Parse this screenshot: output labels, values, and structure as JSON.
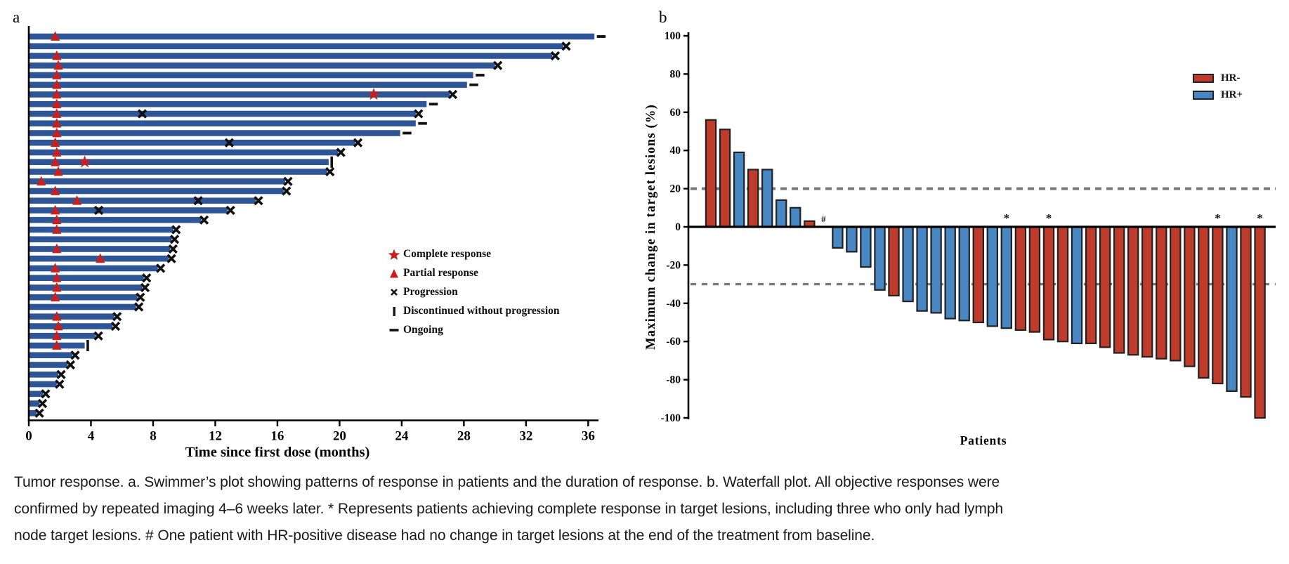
{
  "figure": {
    "panel_a_label": "a",
    "panel_b_label": "b"
  },
  "colors": {
    "swimmer_bar": "#2E5596",
    "response_red": "#C9201D",
    "marker_black": "#111111",
    "hr_neg": "#BF3B2B",
    "hr_pos": "#4787C3",
    "bar_outline": "#222222",
    "dashed_line": "#7A7A7A",
    "axis_black": "#000000"
  },
  "chart_data": [
    {
      "type": "bar",
      "variant": "swimmer",
      "xlabel": "Time since first dose (months)",
      "x_ticks": [
        0,
        4,
        8,
        12,
        16,
        20,
        24,
        28,
        32,
        36
      ],
      "xlim": [
        0,
        36.5
      ],
      "legend": [
        {
          "symbol": "star",
          "label": "Complete response"
        },
        {
          "symbol": "triangle",
          "label": "Partial response"
        },
        {
          "symbol": "x",
          "label": "Progression"
        },
        {
          "symbol": "vbar",
          "label": "Discontinued without progression"
        },
        {
          "symbol": "dash",
          "label": "Ongoing"
        }
      ],
      "rows": [
        {
          "duration": 36.4,
          "end_marker": "ongoing",
          "partial_response_at": 1.7
        },
        {
          "duration": 34.4,
          "end_marker": "progression"
        },
        {
          "duration": 33.7,
          "end_marker": "progression",
          "partial_response_at": 1.8
        },
        {
          "duration": 30.0,
          "end_marker": "progression",
          "partial_response_at": 1.9
        },
        {
          "duration": 28.6,
          "end_marker": "ongoing",
          "partial_response_at": 1.8
        },
        {
          "duration": 28.2,
          "end_marker": "ongoing",
          "partial_response_at": 1.8
        },
        {
          "duration": 27.1,
          "end_marker": "progression",
          "partial_response_at": 1.8,
          "complete_response_at": 22.2
        },
        {
          "duration": 25.6,
          "end_marker": "ongoing",
          "partial_response_at": 1.8
        },
        {
          "duration": 24.9,
          "end_marker": "progression",
          "partial_response_at": 1.8,
          "progression_at": [
            7.3
          ]
        },
        {
          "duration": 24.9,
          "end_marker": "ongoing",
          "partial_response_at": 1.8
        },
        {
          "duration": 23.9,
          "end_marker": "ongoing",
          "partial_response_at": 1.8
        },
        {
          "duration": 21.0,
          "end_marker": "progression",
          "partial_response_at": 1.7,
          "progression_at": [
            12.9
          ]
        },
        {
          "duration": 19.9,
          "end_marker": "progression",
          "partial_response_at": 1.8
        },
        {
          "duration": 19.3,
          "end_marker": "discontinued",
          "partial_response_at": 1.7,
          "complete_response_at": 3.6
        },
        {
          "duration": 19.2,
          "end_marker": "progression",
          "partial_response_at": 1.9
        },
        {
          "duration": 16.5,
          "end_marker": "progression",
          "partial_response_at": 0.8
        },
        {
          "duration": 16.4,
          "end_marker": "progression",
          "partial_response_at": 1.7
        },
        {
          "duration": 14.6,
          "end_marker": "progression",
          "partial_response_at": 3.1,
          "progression_at": [
            10.9
          ]
        },
        {
          "duration": 12.8,
          "end_marker": "progression",
          "partial_response_at": 1.7,
          "progression_at": [
            4.5
          ]
        },
        {
          "duration": 11.1,
          "end_marker": "progression",
          "partial_response_at": 1.8
        },
        {
          "duration": 9.3,
          "end_marker": "progression",
          "partial_response_at": 1.8
        },
        {
          "duration": 9.2,
          "end_marker": "progression"
        },
        {
          "duration": 9.1,
          "end_marker": "progression",
          "partial_response_at": 1.8
        },
        {
          "duration": 9.0,
          "end_marker": "progression",
          "partial_response_at": 4.6
        },
        {
          "duration": 8.3,
          "end_marker": "progression",
          "partial_response_at": 1.7
        },
        {
          "duration": 7.4,
          "end_marker": "progression",
          "partial_response_at": 1.8
        },
        {
          "duration": 7.3,
          "end_marker": "progression",
          "partial_response_at": 1.8
        },
        {
          "duration": 7.0,
          "end_marker": "progression",
          "partial_response_at": 1.7
        },
        {
          "duration": 6.9,
          "end_marker": "progression"
        },
        {
          "duration": 5.5,
          "end_marker": "progression",
          "partial_response_at": 1.8
        },
        {
          "duration": 5.4,
          "end_marker": "progression",
          "partial_response_at": 1.9
        },
        {
          "duration": 4.3,
          "end_marker": "progression",
          "partial_response_at": 1.8
        },
        {
          "duration": 3.6,
          "end_marker": "discontinued",
          "partial_response_at": 1.8
        },
        {
          "duration": 2.8,
          "end_marker": "progression"
        },
        {
          "duration": 2.5,
          "end_marker": "progression"
        },
        {
          "duration": 1.9,
          "end_marker": "progression"
        },
        {
          "duration": 1.8,
          "end_marker": "progression"
        },
        {
          "duration": 0.9,
          "end_marker": "progression"
        },
        {
          "duration": 0.7,
          "end_marker": "progression"
        },
        {
          "duration": 0.5,
          "end_marker": "progression"
        }
      ]
    },
    {
      "type": "bar",
      "variant": "waterfall",
      "ylabel": "Maximum change in target lesions (%)",
      "xlabel": "Patients",
      "ylim": [
        -100,
        100
      ],
      "y_ticks": [
        100,
        80,
        60,
        40,
        20,
        0,
        -20,
        -40,
        -60,
        -80,
        -100
      ],
      "reference_lines": [
        20,
        -30
      ],
      "legend": [
        {
          "label": "HR-",
          "color_key": "hr_neg"
        },
        {
          "label": "HR+",
          "color_key": "hr_pos"
        }
      ],
      "bars": [
        {
          "value": 56,
          "group": "HR-"
        },
        {
          "value": 51,
          "group": "HR-"
        },
        {
          "value": 39,
          "group": "HR+"
        },
        {
          "value": 30,
          "group": "HR-"
        },
        {
          "value": 30,
          "group": "HR+"
        },
        {
          "value": 14,
          "group": "HR+"
        },
        {
          "value": 10,
          "group": "HR+"
        },
        {
          "value": 3,
          "group": "HR-"
        },
        {
          "value": 0,
          "group": "HR+",
          "annotation": "#"
        },
        {
          "value": -11,
          "group": "HR+"
        },
        {
          "value": -13,
          "group": "HR+"
        },
        {
          "value": -21,
          "group": "HR+"
        },
        {
          "value": -33,
          "group": "HR+"
        },
        {
          "value": -36,
          "group": "HR-"
        },
        {
          "value": -39,
          "group": "HR+"
        },
        {
          "value": -44,
          "group": "HR+"
        },
        {
          "value": -45,
          "group": "HR+"
        },
        {
          "value": -48,
          "group": "HR+"
        },
        {
          "value": -49,
          "group": "HR+"
        },
        {
          "value": -50,
          "group": "HR-"
        },
        {
          "value": -52,
          "group": "HR+"
        },
        {
          "value": -53,
          "group": "HR+",
          "annotation": "*"
        },
        {
          "value": -54,
          "group": "HR-"
        },
        {
          "value": -55,
          "group": "HR-"
        },
        {
          "value": -59,
          "group": "HR-",
          "annotation": "*"
        },
        {
          "value": -60,
          "group": "HR-"
        },
        {
          "value": -61,
          "group": "HR+"
        },
        {
          "value": -61,
          "group": "HR-"
        },
        {
          "value": -63,
          "group": "HR-"
        },
        {
          "value": -66,
          "group": "HR-"
        },
        {
          "value": -67,
          "group": "HR-"
        },
        {
          "value": -68,
          "group": "HR-"
        },
        {
          "value": -69,
          "group": "HR-"
        },
        {
          "value": -70,
          "group": "HR-"
        },
        {
          "value": -73,
          "group": "HR-"
        },
        {
          "value": -79,
          "group": "HR-"
        },
        {
          "value": -82,
          "group": "HR-",
          "annotation": "*"
        },
        {
          "value": -86,
          "group": "HR+"
        },
        {
          "value": -89,
          "group": "HR-"
        },
        {
          "value": -100,
          "group": "HR-",
          "annotation": "*"
        }
      ]
    }
  ],
  "caption": {
    "lines": [
      "Tumor response. a. Swimmer’s plot showing patterns of response in patients and the duration of response. b. Waterfall plot. All objective responses were",
      "confirmed by repeated imaging 4–6 weeks later. * Represents patients achieving complete response in target lesions, including three who only had lymph",
      "node target lesions. # One patient with HR-positive disease had no change in target lesions at the end of the treatment from baseline."
    ]
  }
}
